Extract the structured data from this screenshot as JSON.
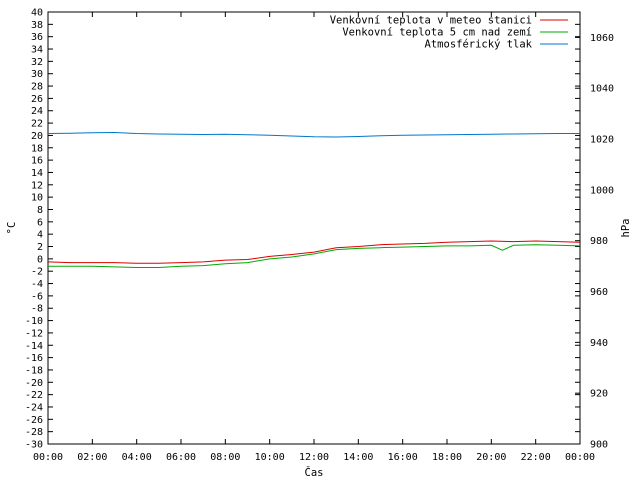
{
  "chart_data": {
    "type": "line",
    "xlabel": "Čas",
    "ylabel": "°C",
    "y2label": "hPa",
    "ylim": [
      -30,
      40
    ],
    "y2lim": [
      900,
      1070
    ],
    "x_ticks": [
      "00:00",
      "02:00",
      "04:00",
      "06:00",
      "08:00",
      "10:00",
      "12:00",
      "14:00",
      "16:00",
      "18:00",
      "20:00",
      "22:00",
      "00:00"
    ],
    "y_ticks": [
      40,
      38,
      36,
      34,
      32,
      30,
      28,
      26,
      24,
      22,
      20,
      18,
      16,
      14,
      12,
      10,
      8,
      6,
      4,
      2,
      0,
      -2,
      -4,
      -6,
      -8,
      -10,
      -12,
      -14,
      -16,
      -18,
      -20,
      -22,
      -24,
      -26,
      -28,
      -30
    ],
    "y2_ticks": [
      1060,
      1040,
      1020,
      1000,
      980,
      960,
      940,
      920,
      900
    ],
    "grid": false,
    "legend_position": "top-right",
    "series": [
      {
        "name": "Venkovní teplota v meteo stanici",
        "axis": "left",
        "color": "#dd0000",
        "x": [
          0,
          1,
          2,
          3,
          4,
          5,
          6,
          7,
          8,
          9,
          10,
          11,
          12,
          13,
          14,
          15,
          16,
          17,
          18,
          19,
          20,
          21,
          22,
          23,
          24
        ],
        "values": [
          -0.5,
          -0.6,
          -0.6,
          -0.6,
          -0.7,
          -0.7,
          -0.6,
          -0.5,
          -0.2,
          -0.1,
          0.4,
          0.7,
          1.1,
          1.8,
          2.0,
          2.3,
          2.4,
          2.5,
          2.7,
          2.8,
          2.9,
          2.8,
          2.9,
          2.8,
          2.7
        ]
      },
      {
        "name": "Venkovní teplota 5 cm nad zemí",
        "axis": "left",
        "color": "#00aa00",
        "x": [
          0,
          1,
          2,
          3,
          4,
          5,
          6,
          7,
          8,
          9,
          10,
          11,
          12,
          13,
          14,
          15,
          16,
          17,
          18,
          19,
          20,
          20.5,
          21,
          22,
          23,
          24
        ],
        "values": [
          -1.2,
          -1.2,
          -1.2,
          -1.3,
          -1.4,
          -1.4,
          -1.2,
          -1.1,
          -0.8,
          -0.6,
          0.0,
          0.3,
          0.8,
          1.5,
          1.7,
          1.8,
          1.9,
          2.0,
          2.1,
          2.1,
          2.2,
          1.4,
          2.2,
          2.3,
          2.2,
          2.1
        ]
      },
      {
        "name": "Atmosférický tlak",
        "axis": "right",
        "color": "#0077cc",
        "x": [
          0,
          1,
          2,
          3,
          4,
          5,
          6,
          7,
          8,
          9,
          10,
          11,
          12,
          13,
          14,
          15,
          16,
          17,
          18,
          19,
          20,
          21,
          22,
          23,
          24
        ],
        "values": [
          1022.2,
          1022.3,
          1022.5,
          1022.6,
          1022.2,
          1022.0,
          1021.9,
          1021.8,
          1021.9,
          1021.7,
          1021.5,
          1021.2,
          1020.9,
          1020.8,
          1021.0,
          1021.3,
          1021.5,
          1021.6,
          1021.7,
          1021.8,
          1021.9,
          1022.0,
          1022.1,
          1022.2,
          1022.2
        ]
      }
    ]
  }
}
